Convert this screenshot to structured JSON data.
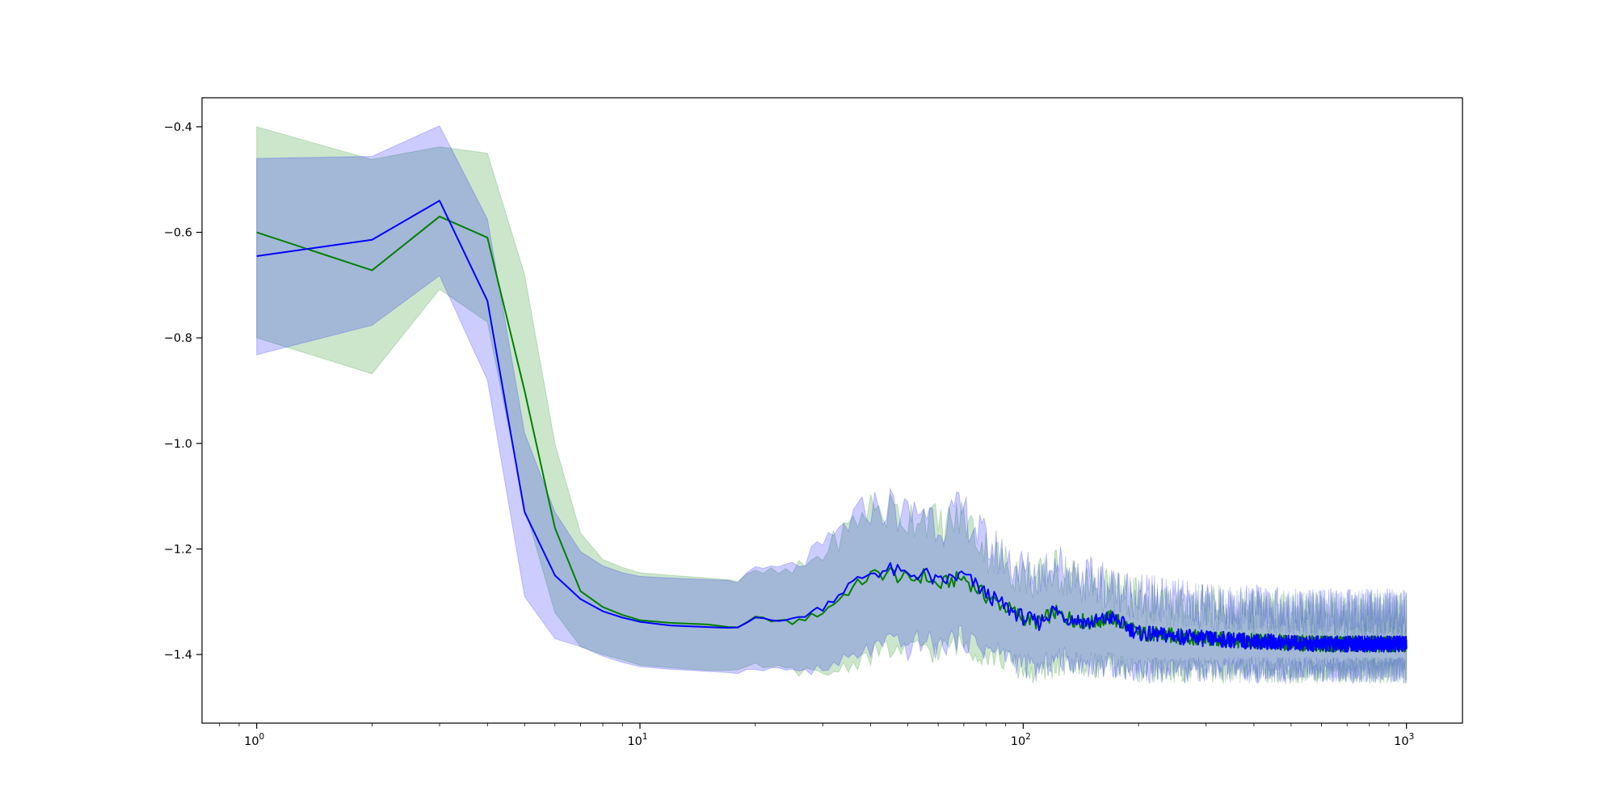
{
  "chart_data": {
    "type": "line",
    "title": "",
    "xlabel": "",
    "ylabel": "",
    "x_scale": "log",
    "xlim": [
      0.72,
      1400
    ],
    "ylim": [
      -1.53,
      -0.345
    ],
    "grid": false,
    "legend": "none",
    "x_ticks": [
      {
        "value": 1,
        "base": "10",
        "exp": "0"
      },
      {
        "value": 10,
        "base": "10",
        "exp": "1"
      },
      {
        "value": 100,
        "base": "10",
        "exp": "2"
      },
      {
        "value": 1000,
        "base": "10",
        "exp": "3"
      }
    ],
    "y_ticks": [
      {
        "value": -0.4,
        "label": "−0.4"
      },
      {
        "value": -0.6,
        "label": "−0.6"
      },
      {
        "value": -0.8,
        "label": "−0.8"
      },
      {
        "value": -1.0,
        "label": "−1.0"
      },
      {
        "value": -1.2,
        "label": "−1.2"
      },
      {
        "value": -1.4,
        "label": "−1.4"
      }
    ],
    "series": [
      {
        "color": "#008000",
        "band_color": "#008000",
        "band_opacity": 0.2,
        "x": [
          1,
          2,
          3,
          4,
          5,
          6,
          7,
          8,
          9,
          10,
          12,
          15,
          18,
          20,
          25,
          30,
          35,
          40,
          45,
          50,
          55,
          60,
          65,
          70,
          80,
          90,
          100,
          110,
          120,
          130,
          150,
          170,
          200,
          250,
          300,
          400,
          500,
          600,
          700,
          800,
          900,
          1000
        ],
        "y": [
          -0.6,
          -0.672,
          -0.57,
          -0.61,
          -0.9,
          -1.16,
          -1.28,
          -1.31,
          -1.325,
          -1.335,
          -1.34,
          -1.343,
          -1.35,
          -1.33,
          -1.34,
          -1.32,
          -1.28,
          -1.25,
          -1.245,
          -1.26,
          -1.25,
          -1.27,
          -1.26,
          -1.255,
          -1.29,
          -1.31,
          -1.33,
          -1.34,
          -1.32,
          -1.33,
          -1.34,
          -1.33,
          -1.36,
          -1.365,
          -1.37,
          -1.375,
          -1.378,
          -1.38,
          -1.38,
          -1.38,
          -1.38,
          -1.38
        ],
        "upper": [
          -0.4,
          -0.462,
          -0.438,
          -0.45,
          -0.68,
          -1.0,
          -1.17,
          -1.22,
          -1.235,
          -1.245,
          -1.25,
          -1.255,
          -1.26,
          -1.245,
          -1.245,
          -1.21,
          -1.16,
          -1.12,
          -1.13,
          -1.14,
          -1.13,
          -1.16,
          -1.15,
          -1.14,
          -1.2,
          -1.23,
          -1.25,
          -1.26,
          -1.24,
          -1.25,
          -1.27,
          -1.28,
          -1.3,
          -1.31,
          -1.31,
          -1.32,
          -1.32,
          -1.325,
          -1.325,
          -1.325,
          -1.325,
          -1.325
        ],
        "lower": [
          -0.8,
          -0.868,
          -0.708,
          -0.77,
          -1.12,
          -1.32,
          -1.385,
          -1.4,
          -1.41,
          -1.42,
          -1.425,
          -1.43,
          -1.43,
          -1.42,
          -1.43,
          -1.44,
          -1.42,
          -1.4,
          -1.39,
          -1.4,
          -1.38,
          -1.4,
          -1.38,
          -1.38,
          -1.4,
          -1.41,
          -1.43,
          -1.44,
          -1.42,
          -1.42,
          -1.42,
          -1.42,
          -1.43,
          -1.43,
          -1.43,
          -1.43,
          -1.43,
          -1.43,
          -1.43,
          -1.43,
          -1.43,
          -1.43
        ]
      },
      {
        "color": "#0000ff",
        "band_color": "#0000ff",
        "band_opacity": 0.2,
        "x": [
          1,
          2,
          3,
          4,
          5,
          6,
          7,
          8,
          9,
          10,
          12,
          15,
          18,
          20,
          25,
          30,
          35,
          40,
          45,
          50,
          55,
          60,
          65,
          70,
          80,
          90,
          100,
          110,
          120,
          130,
          150,
          170,
          200,
          250,
          300,
          400,
          500,
          600,
          700,
          800,
          900,
          1000
        ],
        "y": [
          -0.645,
          -0.614,
          -0.54,
          -0.73,
          -1.13,
          -1.25,
          -1.295,
          -1.318,
          -1.33,
          -1.338,
          -1.345,
          -1.348,
          -1.35,
          -1.33,
          -1.335,
          -1.31,
          -1.27,
          -1.245,
          -1.24,
          -1.25,
          -1.245,
          -1.265,
          -1.255,
          -1.25,
          -1.285,
          -1.31,
          -1.33,
          -1.34,
          -1.315,
          -1.33,
          -1.34,
          -1.33,
          -1.36,
          -1.365,
          -1.37,
          -1.375,
          -1.378,
          -1.38,
          -1.38,
          -1.38,
          -1.38,
          -1.38
        ],
        "upper": [
          -0.46,
          -0.456,
          -0.398,
          -0.575,
          -0.98,
          -1.13,
          -1.205,
          -1.232,
          -1.245,
          -1.252,
          -1.255,
          -1.258,
          -1.26,
          -1.24,
          -1.235,
          -1.2,
          -1.15,
          -1.12,
          -1.12,
          -1.14,
          -1.12,
          -1.15,
          -1.14,
          -1.13,
          -1.19,
          -1.22,
          -1.24,
          -1.25,
          -1.22,
          -1.24,
          -1.26,
          -1.27,
          -1.29,
          -1.3,
          -1.31,
          -1.31,
          -1.32,
          -1.32,
          -1.32,
          -1.32,
          -1.32,
          -1.32
        ],
        "lower": [
          -0.832,
          -0.776,
          -0.682,
          -0.88,
          -1.29,
          -1.37,
          -1.385,
          -1.403,
          -1.415,
          -1.423,
          -1.428,
          -1.432,
          -1.435,
          -1.425,
          -1.43,
          -1.43,
          -1.41,
          -1.39,
          -1.38,
          -1.39,
          -1.37,
          -1.39,
          -1.37,
          -1.37,
          -1.39,
          -1.4,
          -1.42,
          -1.43,
          -1.41,
          -1.41,
          -1.42,
          -1.42,
          -1.43,
          -1.43,
          -1.43,
          -1.43,
          -1.43,
          -1.43,
          -1.43,
          -1.43,
          -1.43,
          -1.43
        ]
      }
    ]
  }
}
